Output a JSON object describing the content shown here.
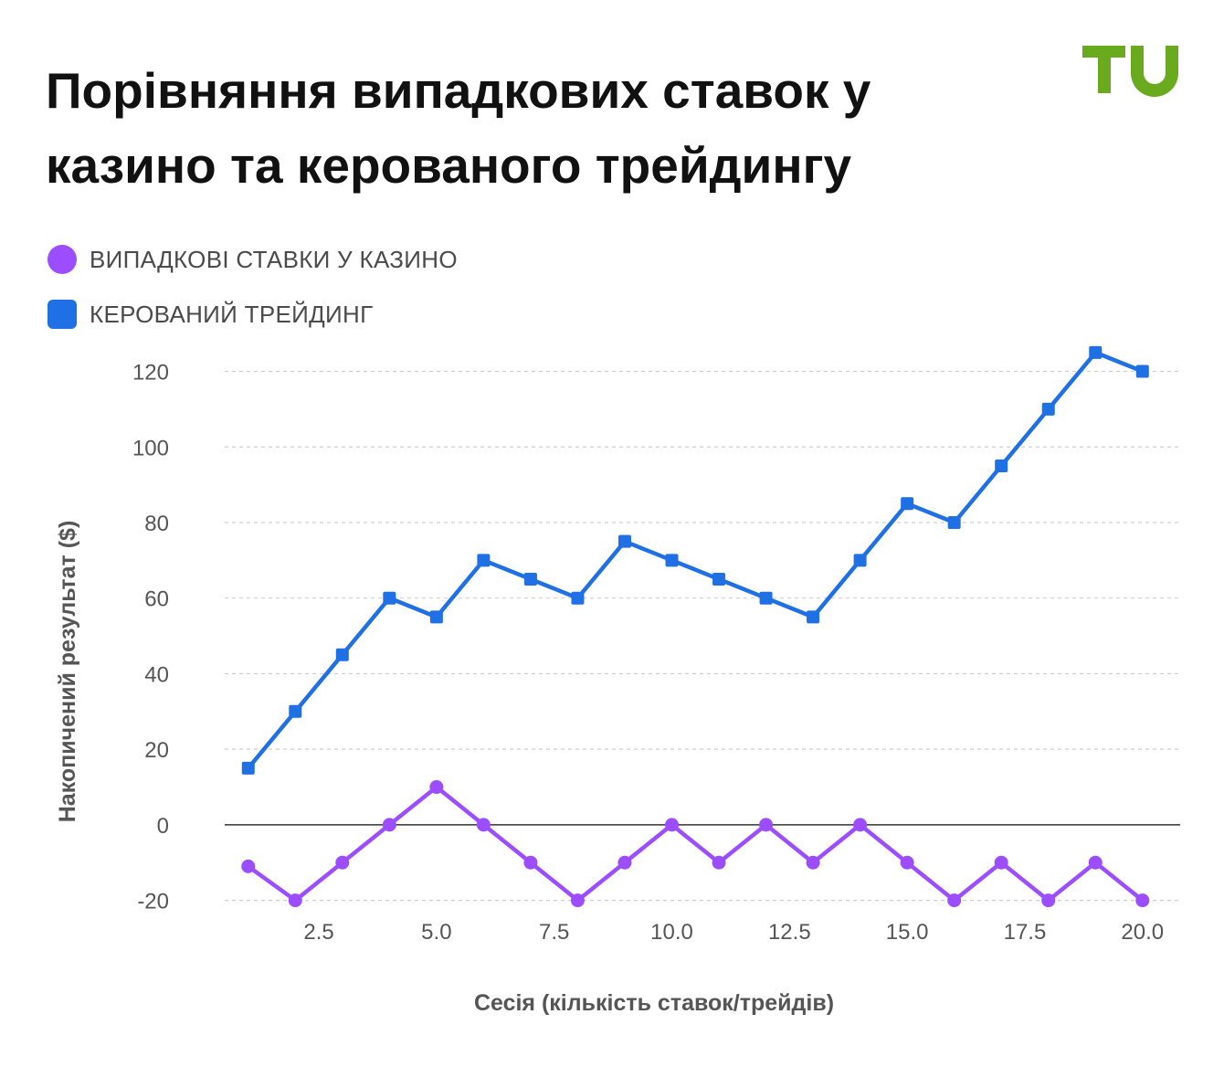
{
  "title": "Порівняння випадкових ставок у казино та керованого трейдингу",
  "logo": {
    "icon": "tu-logo-icon",
    "color": "#6aaa1e"
  },
  "chart_data": {
    "type": "line",
    "title": "Порівняння випадкових ставок у казино та керованого трейдингу",
    "xlabel": "Сесія (кількість ставок/трейдів)",
    "ylabel": "Накопичений результат ($)",
    "x": [
      1,
      2,
      3,
      4,
      5,
      6,
      7,
      8,
      9,
      10,
      11,
      12,
      13,
      14,
      15,
      16,
      17,
      18,
      19,
      20
    ],
    "xlim": [
      0.5,
      20.8
    ],
    "ylim": [
      -23,
      124
    ],
    "xticks": [
      2.5,
      5.0,
      7.5,
      10.0,
      12.5,
      15.0,
      17.5,
      20.0
    ],
    "xtick_labels": [
      "2.5",
      "5.0",
      "7.5",
      "10.0",
      "12.5",
      "15.0",
      "17.5",
      "20.0"
    ],
    "yticks": [
      -20,
      0,
      20,
      40,
      60,
      80,
      100,
      120
    ],
    "ytick_labels": [
      "-20",
      "0",
      "20",
      "40",
      "60",
      "80",
      "100",
      "120"
    ],
    "grid": true,
    "legend_position": "top-left",
    "series": [
      {
        "name": "ВИПАДКОВІ СТАВКИ У КАЗИНО",
        "marker": "circle",
        "color": "#9b4dff",
        "values": [
          -11,
          -20,
          -10,
          0,
          10,
          0,
          -10,
          -20,
          -10,
          0,
          -10,
          0,
          -10,
          0,
          -10,
          -20,
          -10,
          -20,
          -10,
          -20
        ]
      },
      {
        "name": "КЕРОВАНИЙ ТРЕЙДИНГ",
        "marker": "square",
        "color": "#1f6fe5",
        "values": [
          15,
          30,
          45,
          60,
          55,
          70,
          65,
          60,
          75,
          70,
          65,
          60,
          55,
          70,
          85,
          80,
          95,
          110,
          125,
          120
        ]
      }
    ]
  }
}
